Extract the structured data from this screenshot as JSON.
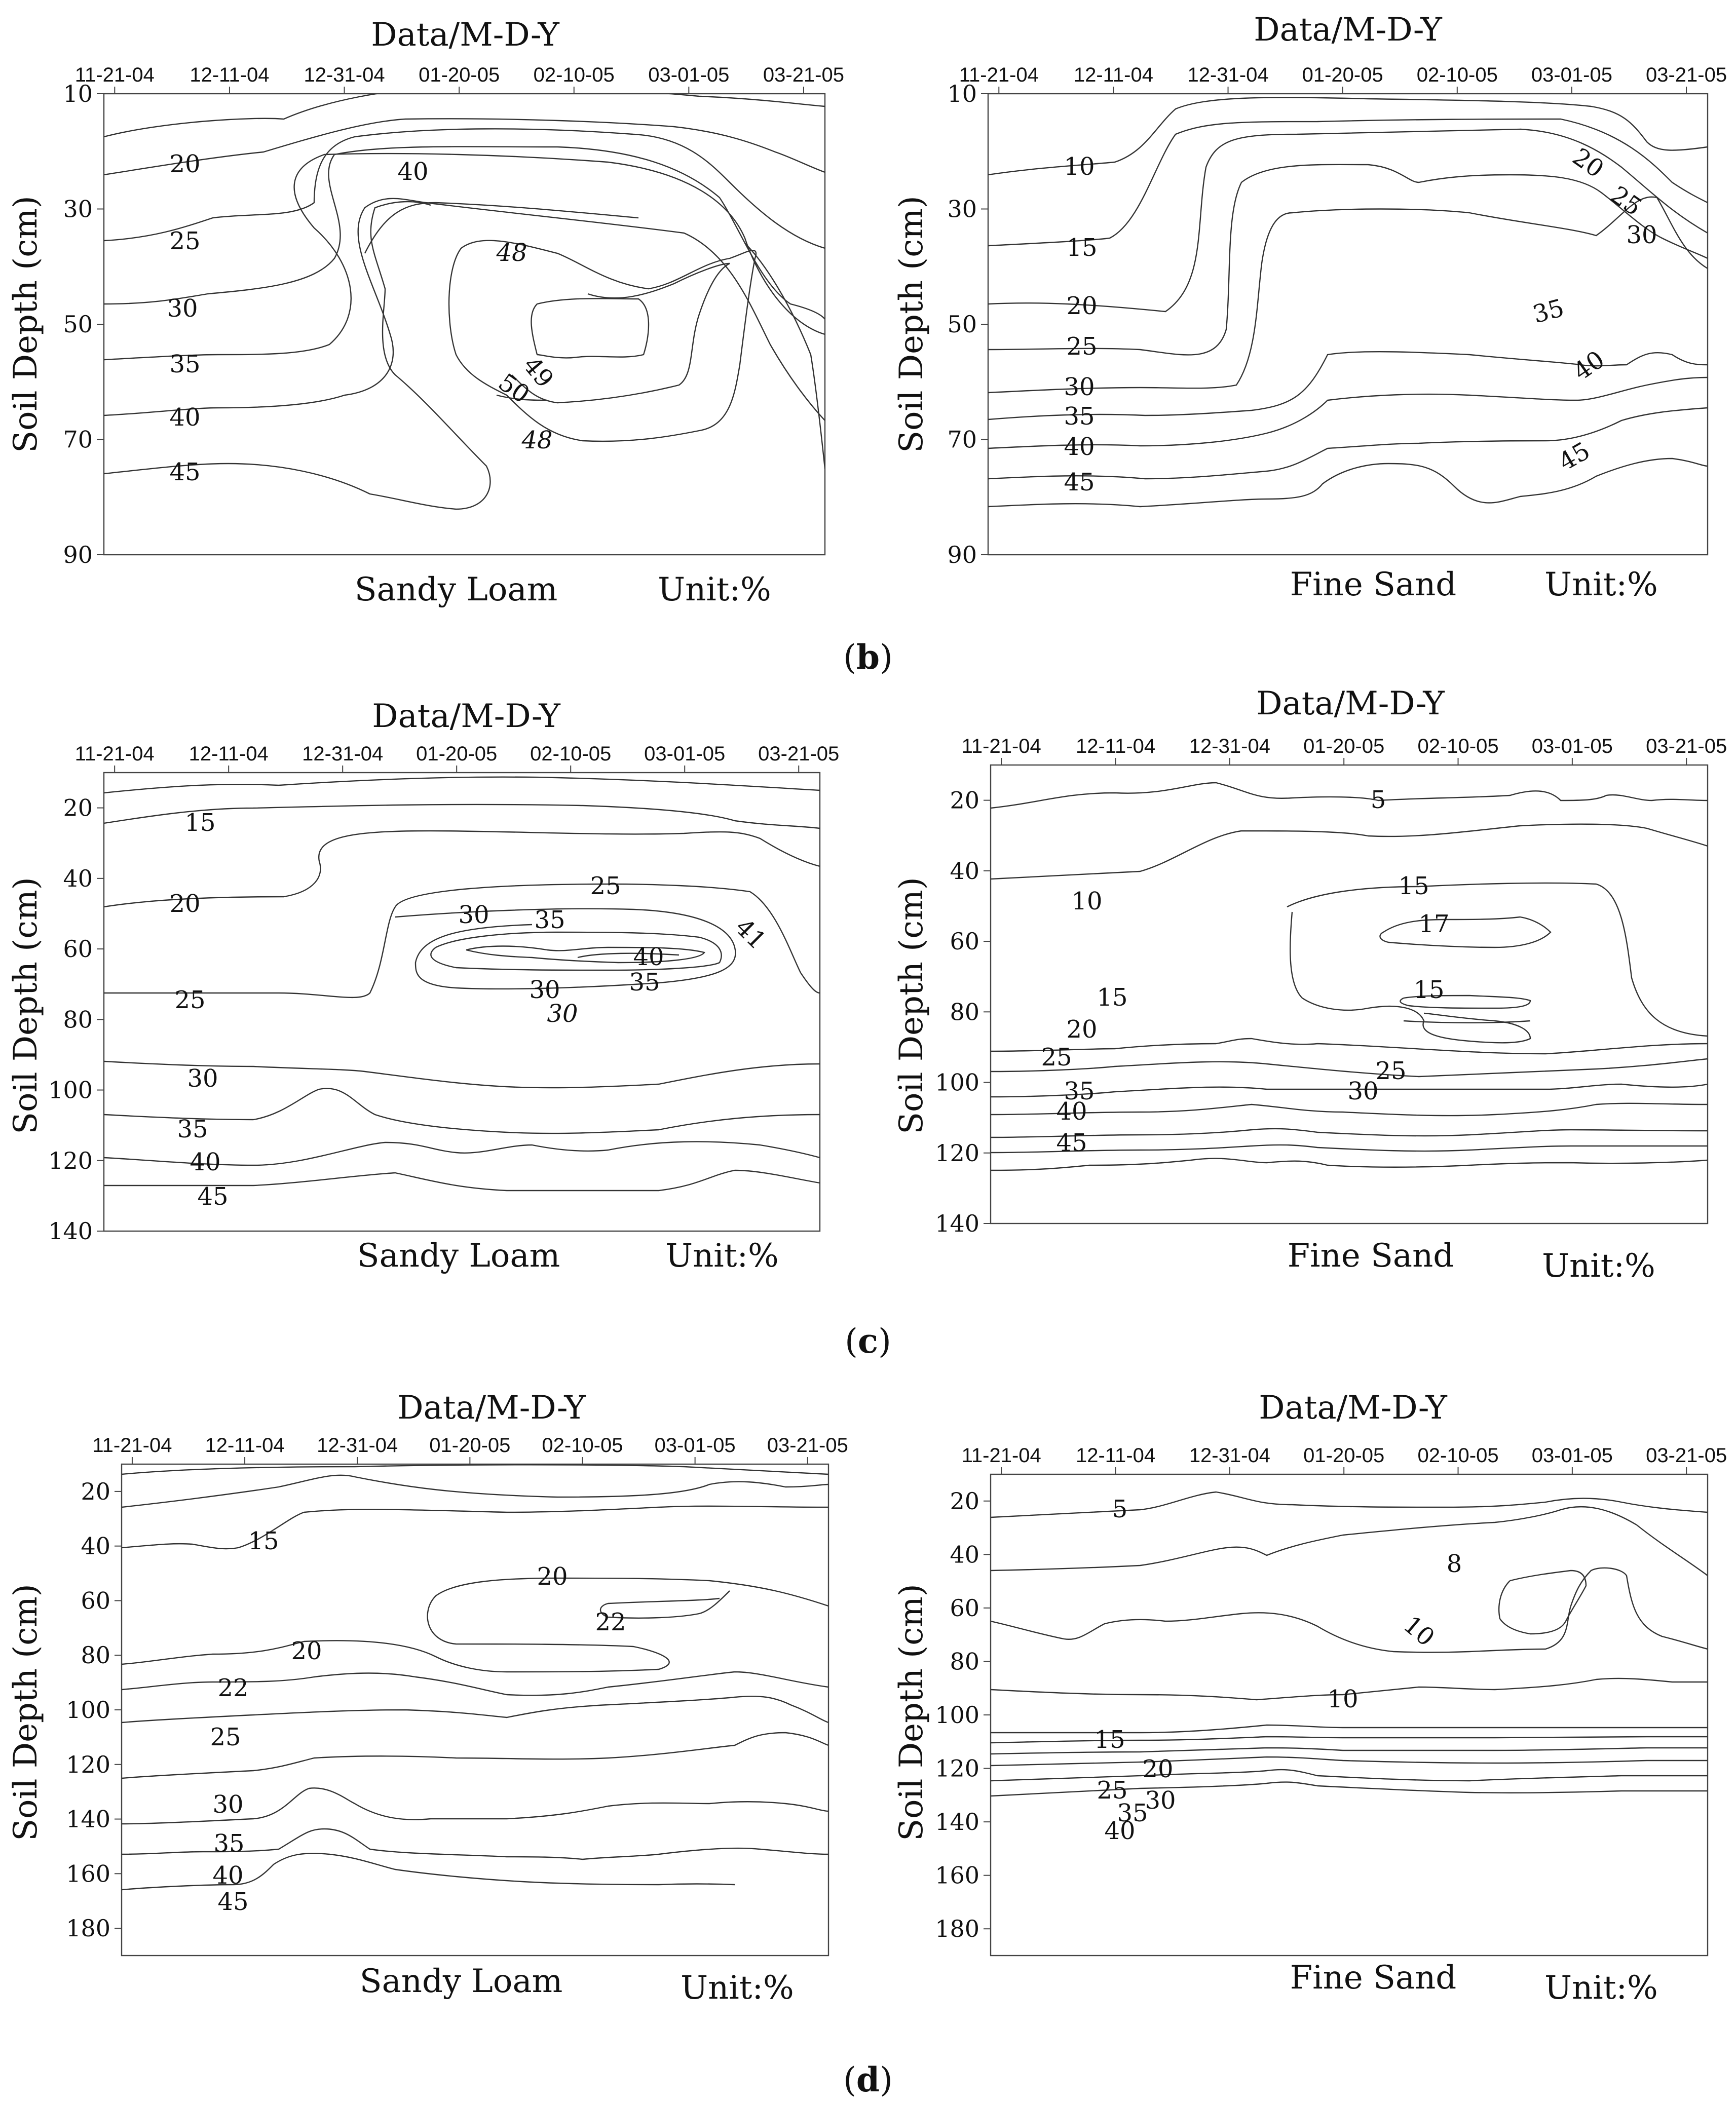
{
  "chart_data": [
    {
      "type": "contour",
      "panel": "b",
      "position": "left",
      "title": "Data/M-D-Y",
      "ylabel": "Soil Depth (cm)",
      "dates": [
        "11-21-04",
        "12-11-04",
        "12-31-04",
        "01-20-05",
        "02-10-05",
        "03-01-05",
        "03-21-05"
      ],
      "ylim": [
        10,
        90
      ],
      "yticks": [
        10,
        30,
        50,
        70,
        90
      ],
      "soil": "Sandy Loam",
      "unit": "Unit:%",
      "contour_levels": [
        20,
        25,
        30,
        35,
        40,
        45,
        40,
        48,
        49,
        50,
        48
      ]
    },
    {
      "type": "contour",
      "panel": "b",
      "position": "right",
      "title": "Data/M-D-Y",
      "ylabel": "Soil Depth (cm)",
      "dates": [
        "11-21-04",
        "12-11-04",
        "12-31-04",
        "01-20-05",
        "02-10-05",
        "03-01-05",
        "03-21-05"
      ],
      "ylim": [
        10,
        90
      ],
      "yticks": [
        10,
        30,
        50,
        70,
        90
      ],
      "soil": "Fine Sand",
      "unit": "Unit:%",
      "contour_levels": [
        10,
        15,
        20,
        25,
        30,
        35,
        40,
        45,
        20,
        25,
        30,
        35,
        40,
        45
      ]
    },
    {
      "type": "contour",
      "panel": "c",
      "position": "left",
      "title": "Data/M-D-Y",
      "ylabel": "Soil Depth (cm)",
      "dates": [
        "11-21-04",
        "12-11-04",
        "12-31-04",
        "01-20-05",
        "02-10-05",
        "03-01-05",
        "03-21-05"
      ],
      "ylim": [
        10,
        140
      ],
      "yticks": [
        20,
        40,
        60,
        80,
        100,
        120,
        140
      ],
      "soil": "Sandy Loam",
      "unit": "Unit:%",
      "contour_levels": [
        15,
        20,
        25,
        30,
        35,
        40,
        45,
        25,
        30,
        35,
        41,
        40,
        35,
        30,
        30
      ]
    },
    {
      "type": "contour",
      "panel": "c",
      "position": "right",
      "title": "Data/M-D-Y",
      "ylabel": "Soil Depth (cm)",
      "dates": [
        "11-21-04",
        "12-11-04",
        "12-31-04",
        "01-20-05",
        "02-10-05",
        "03-01-05",
        "03-21-05"
      ],
      "ylim": [
        10,
        140
      ],
      "yticks": [
        20,
        40,
        60,
        80,
        100,
        120,
        140
      ],
      "soil": "Fine Sand",
      "unit": "Unit:%",
      "contour_levels": [
        5,
        10,
        15,
        17,
        15,
        15,
        20,
        25,
        25,
        30,
        35,
        40,
        45
      ]
    },
    {
      "type": "contour",
      "panel": "d",
      "position": "left",
      "title": "Data/M-D-Y",
      "ylabel": "Soil Depth (cm)",
      "dates": [
        "11-21-04",
        "12-11-04",
        "12-31-04",
        "01-20-05",
        "02-10-05",
        "03-01-05",
        "03-21-05"
      ],
      "ylim": [
        10,
        190
      ],
      "yticks": [
        20,
        40,
        60,
        80,
        100,
        120,
        140,
        160,
        180
      ],
      "soil": "Sandy Loam",
      "unit": "Unit:%",
      "contour_levels": [
        15,
        20,
        22,
        20,
        22,
        25,
        30,
        35,
        40,
        45
      ]
    },
    {
      "type": "contour",
      "panel": "d",
      "position": "right",
      "title": "Data/M-D-Y",
      "ylabel": "Soil Depth (cm)",
      "dates": [
        "11-21-04",
        "12-11-04",
        "12-31-04",
        "01-20-05",
        "02-10-05",
        "03-01-05",
        "03-21-05"
      ],
      "ylim": [
        10,
        190
      ],
      "yticks": [
        20,
        40,
        60,
        80,
        100,
        120,
        140,
        160,
        180
      ],
      "soil": "Fine Sand",
      "unit": "Unit:%",
      "contour_levels": [
        5,
        8,
        10,
        10,
        15,
        20,
        25,
        30,
        35,
        40
      ]
    }
  ],
  "panel_labels": {
    "b": {
      "open": "(",
      "letter": "b",
      "close": ")"
    },
    "c": {
      "open": "(",
      "letter": "c",
      "close": ")"
    },
    "d": {
      "open": "(",
      "letter": "d",
      "close": ")"
    }
  }
}
